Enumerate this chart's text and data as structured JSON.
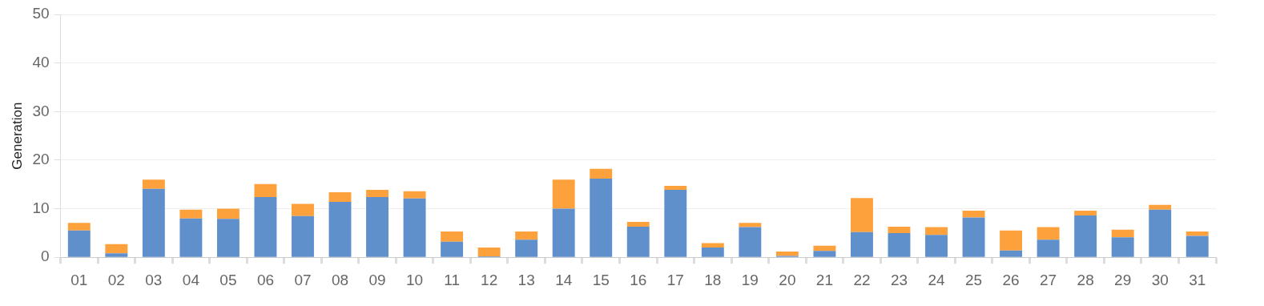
{
  "chart_data": {
    "type": "bar",
    "stacked": true,
    "ylabel": "Generation",
    "categories": [
      "01",
      "02",
      "03",
      "04",
      "05",
      "06",
      "07",
      "08",
      "09",
      "10",
      "11",
      "12",
      "13",
      "14",
      "15",
      "16",
      "17",
      "18",
      "19",
      "20",
      "21",
      "22",
      "23",
      "24",
      "25",
      "26",
      "27",
      "28",
      "29",
      "30",
      "31"
    ],
    "series": [
      {
        "color": "#5f90cb",
        "values": [
          5.5,
          0.8,
          14.1,
          8.0,
          7.9,
          12.4,
          8.5,
          11.4,
          12.4,
          12.1,
          3.2,
          0.2,
          3.6,
          10.0,
          16.2,
          6.3,
          13.9,
          2.0,
          6.2,
          0.3,
          1.3,
          5.2,
          5.0,
          4.6,
          8.2,
          1.4,
          3.6,
          8.6,
          4.1,
          9.8,
          4.4
        ]
      },
      {
        "color": "#fca13c",
        "values": [
          1.6,
          1.9,
          1.9,
          1.8,
          2.1,
          2.7,
          2.5,
          2.0,
          1.5,
          1.5,
          2.1,
          1.8,
          1.7,
          6.0,
          2.0,
          1.0,
          0.8,
          0.9,
          0.9,
          0.9,
          1.1,
          7.0,
          1.3,
          1.6,
          1.4,
          4.1,
          2.6,
          1.0,
          1.6,
          1.0,
          0.9
        ]
      }
    ],
    "ylim": [
      0,
      50
    ],
    "yticks": [
      0,
      10,
      20,
      30,
      40,
      50
    ],
    "grid": "y",
    "legend": false
  }
}
